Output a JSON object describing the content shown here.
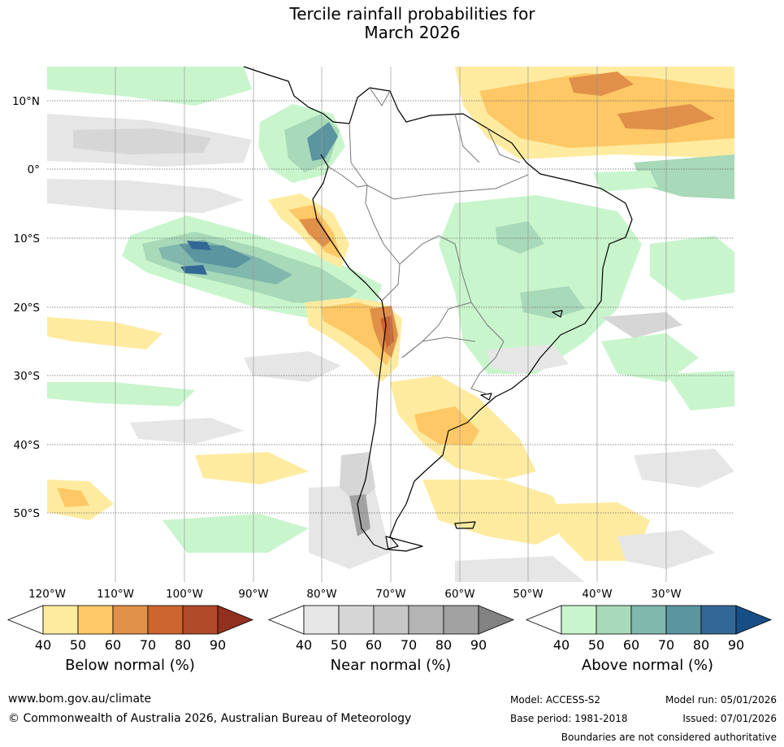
{
  "title": {
    "line1": "Tercile rainfall probabilities for",
    "line2": "March 2026"
  },
  "map": {
    "lat_labels": [
      "10°N",
      "0°",
      "10°S",
      "20°S",
      "30°S",
      "40°S",
      "50°S"
    ],
    "lon_labels": [
      "120°W",
      "110°W",
      "100°W",
      "90°W",
      "80°W",
      "70°W",
      "60°W",
      "50°W",
      "40°W",
      "30°W"
    ]
  },
  "colorbars": [
    {
      "title": "Below normal (%)",
      "ticks": [
        "40",
        "50",
        "60",
        "70",
        "80",
        "90"
      ],
      "colors": [
        "#ffeba0",
        "#fdc865",
        "#e09048",
        "#cc6530",
        "#b04a28",
        "#923020"
      ]
    },
    {
      "title": "Near normal (%)",
      "ticks": [
        "40",
        "50",
        "60",
        "70",
        "80",
        "90"
      ],
      "colors": [
        "#e6e6e6",
        "#d6d6d6",
        "#c6c6c6",
        "#b4b4b4",
        "#a2a2a2",
        "#828282"
      ]
    },
    {
      "title": "Above normal (%)",
      "ticks": [
        "40",
        "50",
        "60",
        "70",
        "80",
        "90"
      ],
      "colors": [
        "#c9f5cd",
        "#a8d9b8",
        "#80b8ad",
        "#5a95a0",
        "#336795",
        "#174e86"
      ]
    }
  ],
  "footer": {
    "url": "www.bom.gov.au/climate",
    "copyright": "© Commonwealth of Australia 2026, Australian Bureau of Meteorology",
    "model": "Model: ACCESS-S2",
    "base_period": "Base period: 1981-2018",
    "model_run": "Model run: 05/01/2026",
    "issued": "Issued: 07/01/2026",
    "disclaimer": "Boundaries are not considered authoritative"
  }
}
